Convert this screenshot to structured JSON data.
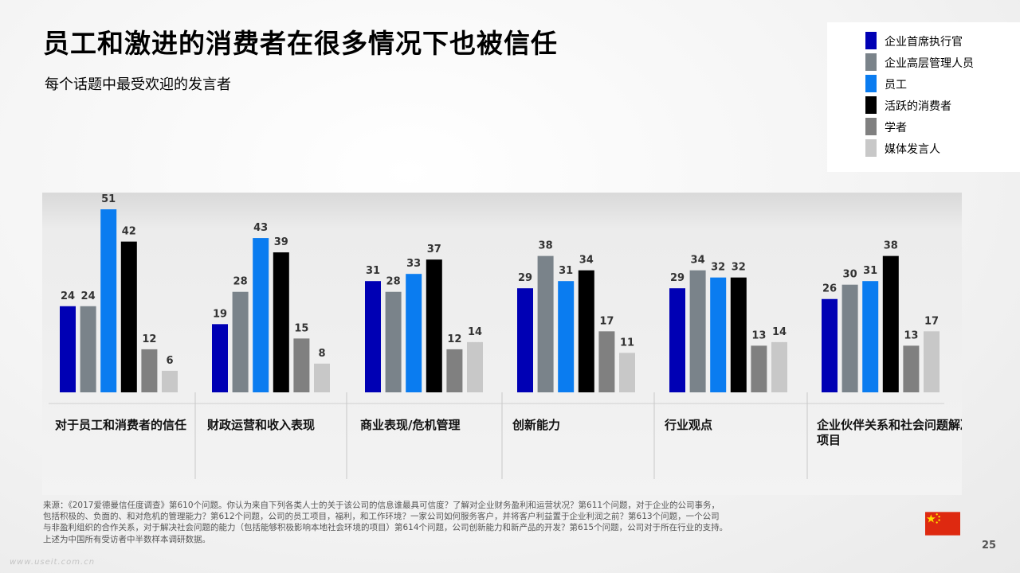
{
  "title": "员工和激进的消费者在很多情况下也被信任",
  "subtitle": "每个话题中最受欢迎的发言者",
  "legend": [
    {
      "label": "企业首席执行官",
      "color": "#0000b4"
    },
    {
      "label": "企业高层管理人员",
      "color": "#7a838a"
    },
    {
      "label": "员工",
      "color": "#0a7cf0"
    },
    {
      "label": "活跃的消费者",
      "color": "#000000"
    },
    {
      "label": "学者",
      "color": "#808080"
    },
    {
      "label": "媒体发言人",
      "color": "#c8c8c8"
    }
  ],
  "chart_data": {
    "type": "bar",
    "categories": [
      "对于员工和消费者的信任",
      "财政运营和收入表现",
      "商业表现/危机管理",
      "创新能力",
      "行业观点",
      "企业伙伴关系和社会问题解决项目"
    ],
    "series": [
      {
        "name": "企业首席执行官",
        "values": [
          24,
          19,
          31,
          29,
          29,
          26
        ]
      },
      {
        "name": "企业高层管理人员",
        "values": [
          24,
          28,
          28,
          38,
          34,
          30
        ]
      },
      {
        "name": "员工",
        "values": [
          51,
          43,
          33,
          31,
          32,
          31
        ]
      },
      {
        "name": "活跃的消费者",
        "values": [
          42,
          39,
          37,
          34,
          32,
          38
        ]
      },
      {
        "name": "学者",
        "values": [
          12,
          15,
          12,
          17,
          13,
          13
        ]
      },
      {
        "name": "媒体发言人",
        "values": [
          6,
          8,
          14,
          11,
          14,
          17
        ]
      }
    ],
    "ylim": [
      0,
      51
    ],
    "legend_position": "top-right",
    "grid": false
  },
  "footnote": [
    "来源：《2017爱德曼信任度调查》第610个问题。你认为来自下列各类人士的关于该公司的信息谁最具可信度？了解对企业财务盈利和运营状况？第611个问题，对于企业的公司事务，",
    "包括积极的、负面的、和对危机的管理能力？第612个问题，公司的员工项目，福利，和工作环境？一家公司如何服务客户，并将客户利益置于企业利润之前？第613个问题，一个公司",
    "与非盈利组织的合作关系，对于解决社会问题的能力（包括能够积极影响本地社会环境的项目）第614个问题，公司创新能力和新产品的开发？第615个问题，公司对于所在行业的支持。",
    "上述为中国所有受访者中半数样本调研数据。"
  ],
  "page_number": "25",
  "watermark": "www.useit.com.cn",
  "flag": "china-flag-icon"
}
